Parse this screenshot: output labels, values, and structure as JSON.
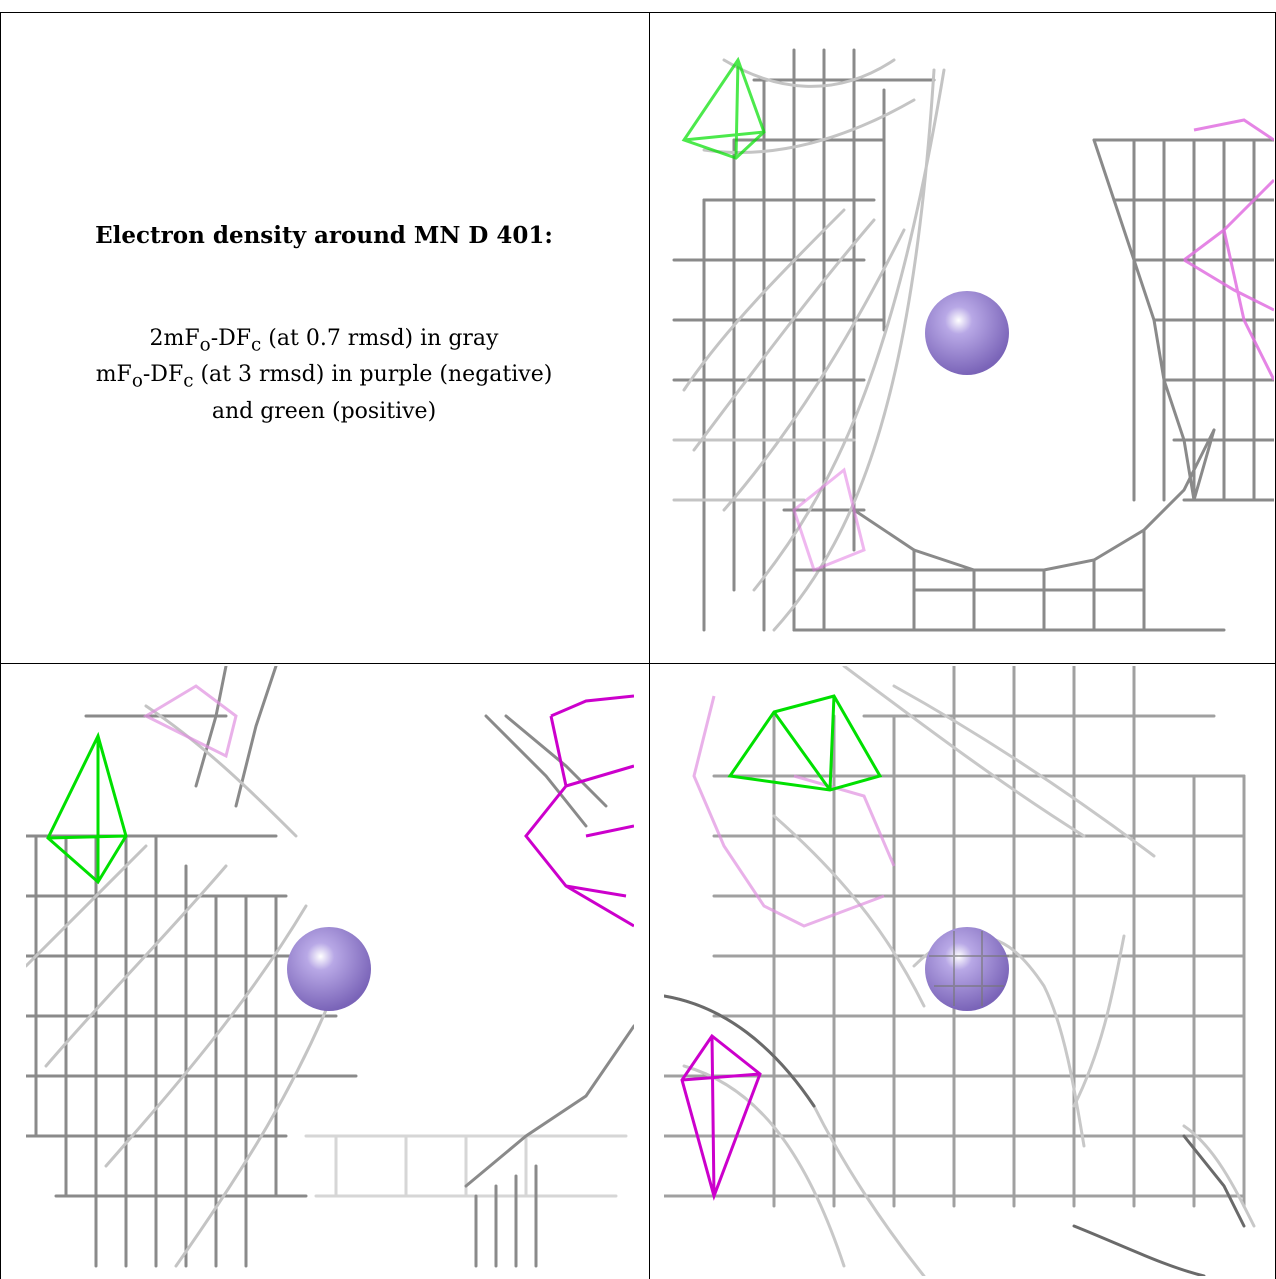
{
  "caption": {
    "title": "Electron density around MN D 401:",
    "line1_pre": "2mF",
    "line1_sub1": "o",
    "line1_mid": "-DF",
    "line1_sub2": "c",
    "line1_post": " (at 0.7 rmsd) in gray",
    "line2_pre": "mF",
    "line2_sub1": "o",
    "line2_mid": "-DF",
    "line2_sub2": "c",
    "line2_post": " (at 3 rmsd) in purple (negative)",
    "line3": "and green (positive)"
  },
  "colors": {
    "grid": "#000000",
    "map_2fofc": "#9a9a9a",
    "negative": "#cc00cc",
    "positive": "#00e000",
    "atom": "#9b84cf"
  },
  "panels": [
    {
      "name": "view-top-right",
      "atom": "MN"
    },
    {
      "name": "view-bottom-left",
      "atom": "MN"
    },
    {
      "name": "view-bottom-right",
      "atom": "MN"
    }
  ]
}
